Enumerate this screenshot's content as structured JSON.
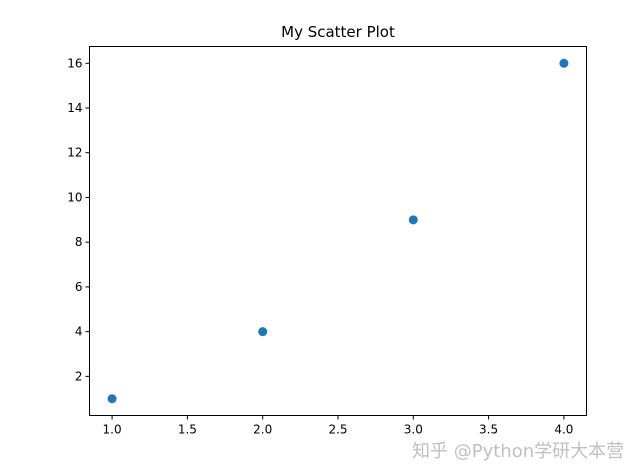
{
  "chart_data": {
    "type": "scatter",
    "title": "My Scatter Plot",
    "xlabel": "",
    "ylabel": "",
    "x": [
      1,
      2,
      3,
      4
    ],
    "y": [
      1,
      4,
      9,
      16
    ],
    "xlim": [
      0.85,
      4.15
    ],
    "ylim": [
      0.25,
      16.75
    ],
    "xticks": [
      "1.0",
      "1.5",
      "2.0",
      "2.5",
      "3.0",
      "3.5",
      "4.0"
    ],
    "yticks": [
      "2",
      "4",
      "6",
      "8",
      "10",
      "12",
      "14",
      "16"
    ],
    "grid": false,
    "color": "#1f77b4"
  },
  "watermark": "知乎 @Python学研大本营"
}
